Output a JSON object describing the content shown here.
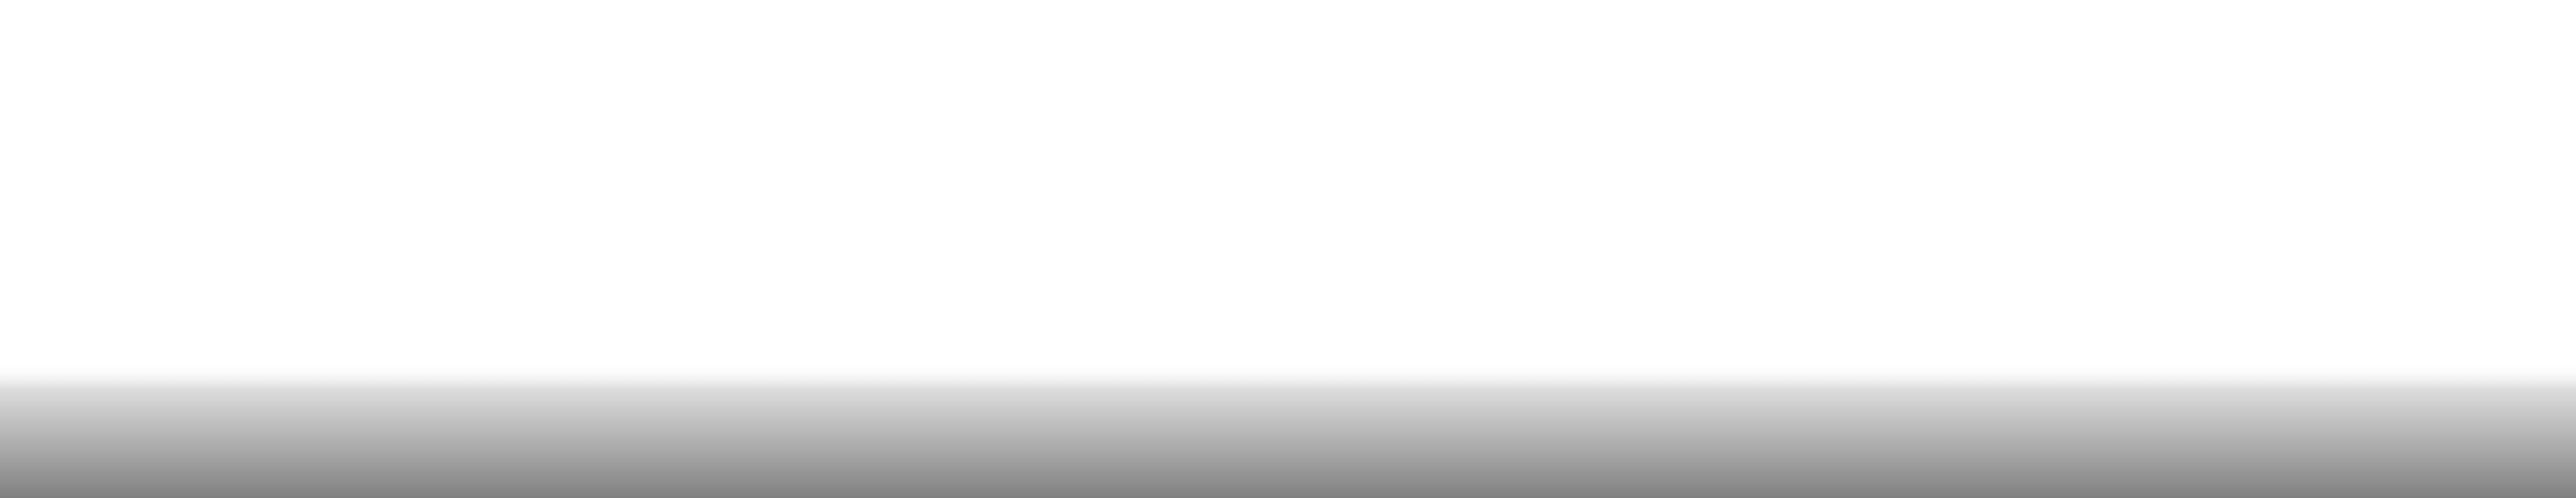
{
  "scene": {
    "background_color": "#ffffff",
    "gradient": {
      "top_color": "#ffffff",
      "top_opacity": 0,
      "mid_color": "#dcdcdc",
      "bottom_color": "#808080"
    }
  }
}
